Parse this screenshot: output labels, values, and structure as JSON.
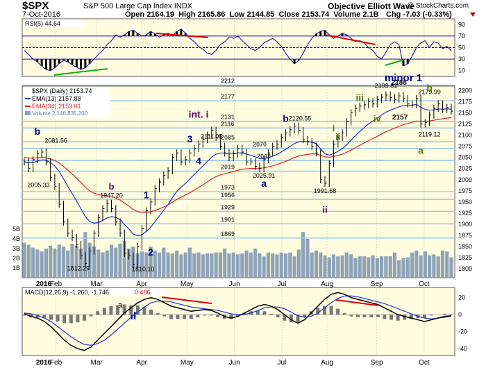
{
  "header": {
    "title": "$SPX",
    "subtitle": "S&P 500 Large Cap Index",
    "exchange": "INDX",
    "credit": "Objective Elliott Wave",
    "site": "@ StockCharts.com",
    "date": "7-Oct-2016",
    "open_label": "Open",
    "open": "2164.19",
    "high_label": "High",
    "high": "2165.86",
    "low_label": "Low",
    "low": "2144.85",
    "close_label": "Close",
    "close": "2153.74",
    "volume_label": "Volume",
    "volume": "2.1B",
    "chg_label": "Chg",
    "chg": "-7.03 (-0.33%)"
  },
  "colors": {
    "panel_bg": "#fefde0",
    "page_bg": "#ffffff",
    "price": "#000000",
    "ema13": "#2233cc",
    "ema34": "#dd2222",
    "volume": "#8fa3b8",
    "rsi_line": "#1a1a99",
    "macd_line": "#000000",
    "macd_signal": "#2233cc",
    "macd_hist": "#777777",
    "fib_lines": "#9fc9e6",
    "wave_minor": "#000080",
    "wave_intermediate": "#6a006a",
    "wave_minute": "#000080",
    "wave_minuette": "#557700",
    "divergence_red": "#dd0000",
    "divergence_green": "#11aa11"
  },
  "chart_data": [
    {
      "type": "line",
      "name": "RSI panel",
      "legend": "RSI(5) 44.64",
      "ylim": [
        0,
        100
      ],
      "yticks": [
        10,
        30,
        50,
        70,
        90
      ],
      "reference_lines": [
        30,
        50,
        70
      ],
      "series": [
        {
          "name": "RSI(5)",
          "values": [
            45,
            38,
            30,
            25,
            18,
            12,
            10,
            15,
            22,
            28,
            25,
            20,
            16,
            12,
            15,
            22,
            30,
            38,
            45,
            55,
            62,
            72,
            68,
            72,
            78,
            80,
            75,
            70,
            72,
            78,
            74,
            68,
            72,
            75,
            70,
            78,
            82,
            75,
            66,
            60,
            52,
            47,
            40,
            38,
            45,
            55,
            60,
            68,
            66,
            70,
            62,
            55,
            48,
            45,
            50,
            58,
            62,
            66,
            60,
            52,
            40,
            30,
            22,
            28,
            40,
            55,
            66,
            74,
            78,
            80,
            72,
            66,
            70,
            75,
            72,
            66,
            60,
            62,
            58,
            50,
            45,
            35,
            30,
            42,
            55,
            60,
            55,
            18,
            22,
            35,
            50,
            58,
            62,
            50,
            60,
            58,
            48,
            52,
            44.64
          ],
          "last": 44.64
        }
      ]
    },
    {
      "type": "line",
      "name": "Price panel",
      "legend": [
        "$SPX (Daily) 2153.74",
        "EMA(13) 2157.88",
        "EMA(34) 2159.01",
        "Volume 2,146,835,200"
      ],
      "ylim": [
        1780,
        2210
      ],
      "yticks": [
        1800,
        1825,
        1850,
        1875,
        1900,
        1925,
        1950,
        1975,
        2000,
        2025,
        2050,
        2075,
        2100,
        2125,
        2150,
        2175,
        2200
      ],
      "volume_ticks": [
        "1B",
        "2B",
        "3B",
        "4B",
        "5B"
      ],
      "x_tick_labels": [
        "2016",
        "Feb",
        "Mar",
        "Apr",
        "May",
        "Jun",
        "Jul",
        "Aug",
        "Sep",
        "Oct"
      ],
      "fib_levels": [
        2212,
        2177,
        2131,
        2116,
        2085,
        2070,
        2043,
        2019,
        1973,
        1956,
        1929,
        1901,
        1869
      ],
      "series": [
        {
          "name": "$SPX",
          "values": [
            2040,
            2025,
            2045,
            2058,
            2062,
            2040,
            2005,
            1985,
            1945,
            1905,
            1880,
            1870,
            1855,
            1830,
            1812,
            1840,
            1880,
            1915,
            1935,
            1947,
            1935,
            1905,
            1880,
            1835,
            1829,
            1810,
            1850,
            1890,
            1930,
            1950,
            1980,
            1995,
            2010,
            2020,
            2050,
            2060,
            2040,
            2045,
            2060,
            2070,
            2080,
            2090,
            2100,
            2111,
            2095,
            2075,
            2060,
            2050,
            2058,
            2070,
            2062,
            2040,
            2040,
            2030,
            2025,
            2045,
            2060,
            2075,
            2080,
            2095,
            2105,
            2112,
            2120,
            2110,
            2090,
            2085,
            2075,
            2060,
            2000,
            1992,
            2036,
            2080,
            2095,
            2105,
            2130,
            2150,
            2160,
            2165,
            2168,
            2175,
            2170,
            2180,
            2185,
            2190,
            2184,
            2180,
            2188,
            2182,
            2170,
            2168,
            2182,
            2125,
            2128,
            2145,
            2160,
            2170,
            2158,
            2162,
            2153.74
          ]
        },
        {
          "name": "EMA(13)",
          "last": 2157.88
        },
        {
          "name": "EMA(34)",
          "last": 2159.01
        },
        {
          "name": "Volume",
          "values": [
            3.6,
            3.4,
            3.1,
            2.9,
            2.7,
            3.0,
            3.3,
            3.0,
            3.4,
            3.2,
            2.8,
            3.5,
            3.3,
            3.0,
            4.7,
            3.6,
            3.2,
            2.9,
            2.6,
            2.8,
            3.4,
            3.1,
            3.5,
            3.8,
            3.0,
            3.2,
            2.5,
            2.7,
            2.6,
            3.2,
            2.8,
            2.6,
            3.1,
            2.6,
            2.5,
            2.8,
            2.4,
            2.6,
            3.1,
            2.5,
            2.6,
            2.4,
            2.5,
            2.5,
            2.6,
            2.6,
            3.0,
            2.5,
            2.6,
            2.4,
            2.5,
            2.8,
            2.6,
            3.0,
            2.5,
            2.2,
            2.6,
            2.5,
            2.4,
            2.6,
            2.5,
            2.6,
            2.2,
            2.9,
            4.7,
            4.0,
            2.6,
            2.8,
            2.6,
            2.3,
            2.1,
            2.4,
            2.2,
            2.3,
            2.6,
            2.4,
            2.0,
            2.2,
            2.2,
            2.1,
            2.3,
            2.0,
            2.2,
            2.2,
            2.2,
            2.6,
            1.8,
            2.0,
            2.1,
            2.6,
            2.8,
            2.3,
            2.7,
            2.3,
            2.4,
            2.2,
            2.8,
            2.7,
            2.1
          ]
        }
      ],
      "annotations": {
        "price_labels": [
          "2081.56",
          "2005.33",
          "1947.20",
          "1812.29",
          "1810.10",
          "2111.05",
          "2120.55",
          "2025.91",
          "1991.68",
          "2193.81",
          "2188",
          "2179.99",
          "2157",
          "2119.12"
        ],
        "wave_labels": [
          "b",
          "a",
          "b",
          "II",
          "1",
          "2",
          "int. i",
          "3",
          "4",
          "b",
          "a",
          "i",
          "ii",
          "iii",
          "iv",
          "ii",
          "minor 1",
          "b",
          "a"
        ]
      }
    },
    {
      "type": "line",
      "name": "MACD panel",
      "legend": [
        "MACD(12,26,9) -1.260, -1.746",
        "0.486"
      ],
      "ylim": [
        -48,
        32
      ],
      "yticks": [
        -40,
        -20,
        0,
        20
      ],
      "x_tick_labels": [
        "2016",
        "Feb",
        "Mar",
        "Apr",
        "May",
        "Jun",
        "Jul",
        "Aug",
        "Sep",
        "Oct"
      ],
      "series": [
        {
          "name": "MACD",
          "values": [
            1,
            -2,
            -4,
            -8,
            -14,
            -22,
            -30,
            -36,
            -40,
            -42,
            -38,
            -30,
            -22,
            -14,
            -6,
            2,
            8,
            14,
            18,
            20,
            18,
            14,
            10,
            8,
            6,
            4,
            5,
            6,
            5,
            2,
            -2,
            -4,
            -2,
            2,
            6,
            10,
            12,
            10,
            6,
            0,
            -6,
            -10,
            -6,
            2,
            10,
            18,
            24,
            26,
            24,
            20,
            18,
            16,
            14,
            12,
            8,
            4,
            0,
            -2,
            -4,
            -6,
            -8,
            -6,
            -4,
            -2,
            -1.26
          ]
        },
        {
          "name": "Signal",
          "values": [
            2,
            1,
            -1,
            -4,
            -8,
            -14,
            -20,
            -26,
            -31,
            -35,
            -36,
            -34,
            -30,
            -24,
            -17,
            -10,
            -3,
            3,
            9,
            14,
            16,
            16,
            15,
            13,
            11,
            9,
            8,
            7,
            6,
            5,
            3,
            1,
            0,
            0,
            2,
            5,
            8,
            9,
            9,
            7,
            3,
            -1,
            -3,
            -2,
            2,
            8,
            14,
            19,
            22,
            22,
            21,
            19,
            17,
            15,
            13,
            10,
            7,
            4,
            1,
            -2,
            -4,
            -5,
            -4,
            -3,
            -1.746
          ]
        },
        {
          "name": "Histogram",
          "last": 0.486
        }
      ]
    }
  ]
}
